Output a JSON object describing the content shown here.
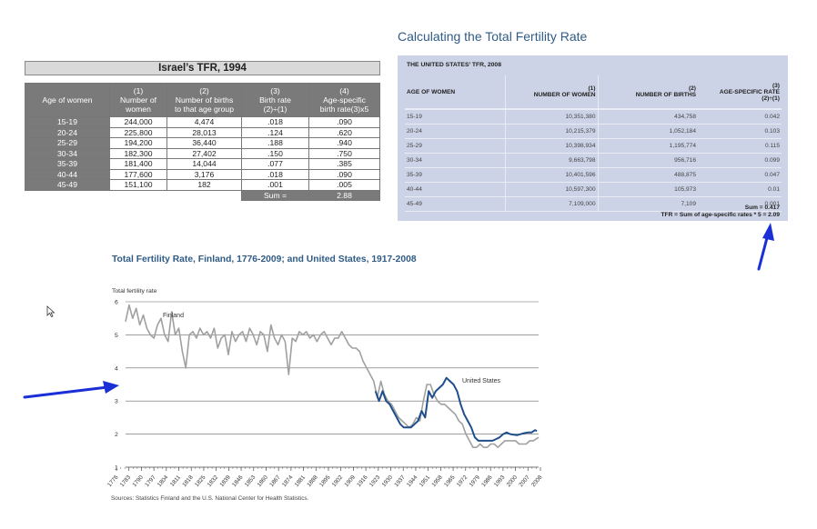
{
  "israel": {
    "title": "Israel’s TFR, 1994",
    "headers": [
      "Age of women",
      "(1)\nNumber of\nwomen",
      "(2)\nNumber of births\nto that age group",
      "(3)\nBirth rate\n(2)÷(1)",
      "(4)\nAge-specific\nbirth rate(3)x5"
    ],
    "rows": [
      [
        "15-19",
        "244,000",
        "4,474",
        ".018",
        ".090"
      ],
      [
        "20-24",
        "225,800",
        "28,013",
        ".124",
        ".620"
      ],
      [
        "25-29",
        "194,200",
        "36,440",
        ".188",
        ".940"
      ],
      [
        "30-34",
        "182,300",
        "27,402",
        ".150",
        ".750"
      ],
      [
        "35-39",
        "181,400",
        "14,044",
        ".077",
        ".385"
      ],
      [
        "40-44",
        "177,600",
        "3,176",
        ".018",
        ".090"
      ],
      [
        "45-49",
        "151,100",
        "182",
        ".001",
        ".005"
      ]
    ],
    "sum_label": "Sum =",
    "sum_value": "2.88"
  },
  "us": {
    "heading": "Calculating the Total Fertility Rate",
    "subtitle": "THE UNITED STATES’ TFR, 2008",
    "headers": [
      "AGE OF WOMEN",
      "(1)\nNUMBER OF WOMEN",
      "(2)\nNUMBER OF BIRTHS",
      "(3)\nAGE-SPECIFIC RATE\n(2)÷(1)"
    ],
    "rows": [
      [
        "15-19",
        "10,351,380",
        "434,758",
        "0.042"
      ],
      [
        "20-24",
        "10,215,379",
        "1,052,184",
        "0.103"
      ],
      [
        "25-29",
        "10,398,934",
        "1,195,774",
        "0.115"
      ],
      [
        "30-34",
        "9,663,798",
        "956,716",
        "0.099"
      ],
      [
        "35-39",
        "10,401,596",
        "488,875",
        "0.047"
      ],
      [
        "40-44",
        "10,597,300",
        "105,973",
        "0.01"
      ],
      [
        "45-49",
        "7,109,000",
        "7,109",
        "0.001"
      ]
    ],
    "sum_line": "Sum = 0.417",
    "tfr_line": "TFR = Sum of age-specific rates * 5 = 2.09"
  },
  "chart_data": {
    "type": "line",
    "title": "Total Fertility Rate, Finland, 1776-2009; and United States, 1917-2008",
    "ylabel": "Total fertility rate",
    "xlabel": "",
    "ylim": [
      1,
      6
    ],
    "yticks": [
      1,
      2,
      3,
      4,
      5,
      6
    ],
    "xlim": [
      1776,
      2009
    ],
    "xticks": [
      "1776",
      "1783",
      "1790",
      "1797",
      "1804",
      "1811",
      "1818",
      "1825",
      "1832",
      "1839",
      "1846",
      "1853",
      "1860",
      "1867",
      "1874",
      "1881",
      "1888",
      "1895",
      "1902",
      "1909",
      "1916",
      "1923",
      "1930",
      "1937",
      "1944",
      "1951",
      "1958",
      "1965",
      "1972",
      "1979",
      "1986",
      "1993",
      "2000",
      "2007",
      "2008"
    ],
    "grid": true,
    "series": [
      {
        "name": "Finland",
        "color": "#a0a0a0",
        "x": [
          1776,
          1778,
          1780,
          1782,
          1784,
          1786,
          1788,
          1790,
          1792,
          1794,
          1796,
          1798,
          1800,
          1802,
          1804,
          1806,
          1808,
          1810,
          1812,
          1814,
          1816,
          1818,
          1820,
          1822,
          1824,
          1826,
          1828,
          1830,
          1832,
          1834,
          1836,
          1838,
          1840,
          1842,
          1844,
          1846,
          1848,
          1850,
          1852,
          1854,
          1856,
          1858,
          1860,
          1862,
          1864,
          1866,
          1868,
          1870,
          1872,
          1874,
          1876,
          1878,
          1880,
          1882,
          1884,
          1886,
          1888,
          1890,
          1892,
          1894,
          1896,
          1898,
          1900,
          1902,
          1904,
          1906,
          1908,
          1910,
          1912,
          1914,
          1916,
          1918,
          1920,
          1922,
          1924,
          1926,
          1928,
          1930,
          1932,
          1934,
          1936,
          1938,
          1940,
          1942,
          1944,
          1946,
          1948,
          1950,
          1952,
          1954,
          1956,
          1958,
          1960,
          1962,
          1964,
          1966,
          1968,
          1970,
          1972,
          1974,
          1976,
          1978,
          1980,
          1982,
          1984,
          1986,
          1988,
          1990,
          1992,
          1994,
          1996,
          1998,
          2000,
          2002,
          2004,
          2006,
          2009
        ],
        "y": [
          5.4,
          5.9,
          5.5,
          5.8,
          5.3,
          5.6,
          5.2,
          5.0,
          4.9,
          5.3,
          5.5,
          5.0,
          4.8,
          5.7,
          5.0,
          5.2,
          4.5,
          4.0,
          5.0,
          5.1,
          4.9,
          5.2,
          5.0,
          5.1,
          4.9,
          5.2,
          4.6,
          4.9,
          5.0,
          4.4,
          5.1,
          4.8,
          5.0,
          5.1,
          4.8,
          5.2,
          5.0,
          4.7,
          5.1,
          5.0,
          4.5,
          5.3,
          4.9,
          4.7,
          5.0,
          4.8,
          3.8,
          4.9,
          4.8,
          5.1,
          5.0,
          5.1,
          4.9,
          5.0,
          4.8,
          5.0,
          5.1,
          4.9,
          4.7,
          4.9,
          4.9,
          5.1,
          4.9,
          4.7,
          4.6,
          4.6,
          4.5,
          4.2,
          4.0,
          3.8,
          3.6,
          3.1,
          3.6,
          3.2,
          3.0,
          2.9,
          2.7,
          2.5,
          2.4,
          2.3,
          2.2,
          2.3,
          2.5,
          2.4,
          3.0,
          3.5,
          3.5,
          3.2,
          3.0,
          2.9,
          2.9,
          2.8,
          2.7,
          2.6,
          2.4,
          2.3,
          2.0,
          1.8,
          1.6,
          1.6,
          1.7,
          1.6,
          1.6,
          1.7,
          1.7,
          1.6,
          1.7,
          1.8,
          1.8,
          1.8,
          1.8,
          1.7,
          1.7,
          1.7,
          1.8,
          1.8,
          1.9
        ]
      },
      {
        "name": "United States",
        "color": "#1f4e8c",
        "x": [
          1917,
          1919,
          1921,
          1923,
          1925,
          1927,
          1929,
          1931,
          1933,
          1935,
          1937,
          1939,
          1941,
          1943,
          1945,
          1947,
          1949,
          1951,
          1953,
          1955,
          1957,
          1959,
          1961,
          1963,
          1965,
          1967,
          1969,
          1971,
          1973,
          1975,
          1977,
          1979,
          1981,
          1983,
          1985,
          1987,
          1989,
          1991,
          1993,
          1995,
          1997,
          1999,
          2001,
          2003,
          2005,
          2007,
          2008
        ],
        "y": [
          3.3,
          3.0,
          3.3,
          3.0,
          2.9,
          2.7,
          2.5,
          2.3,
          2.2,
          2.2,
          2.2,
          2.3,
          2.4,
          2.7,
          2.5,
          3.3,
          3.1,
          3.3,
          3.4,
          3.5,
          3.7,
          3.6,
          3.5,
          3.3,
          2.9,
          2.6,
          2.4,
          2.2,
          1.9,
          1.8,
          1.8,
          1.8,
          1.8,
          1.8,
          1.85,
          1.9,
          2.0,
          2.05,
          2.0,
          1.98,
          1.97,
          2.0,
          2.03,
          2.05,
          2.05,
          2.12,
          2.09
        ]
      }
    ],
    "annotations": [
      "Finland",
      "United States"
    ],
    "source": "Sources: Statistics Finland and the U.S. National Center for Health Statistics."
  },
  "arrows": {
    "color": "#1a2fd6"
  }
}
